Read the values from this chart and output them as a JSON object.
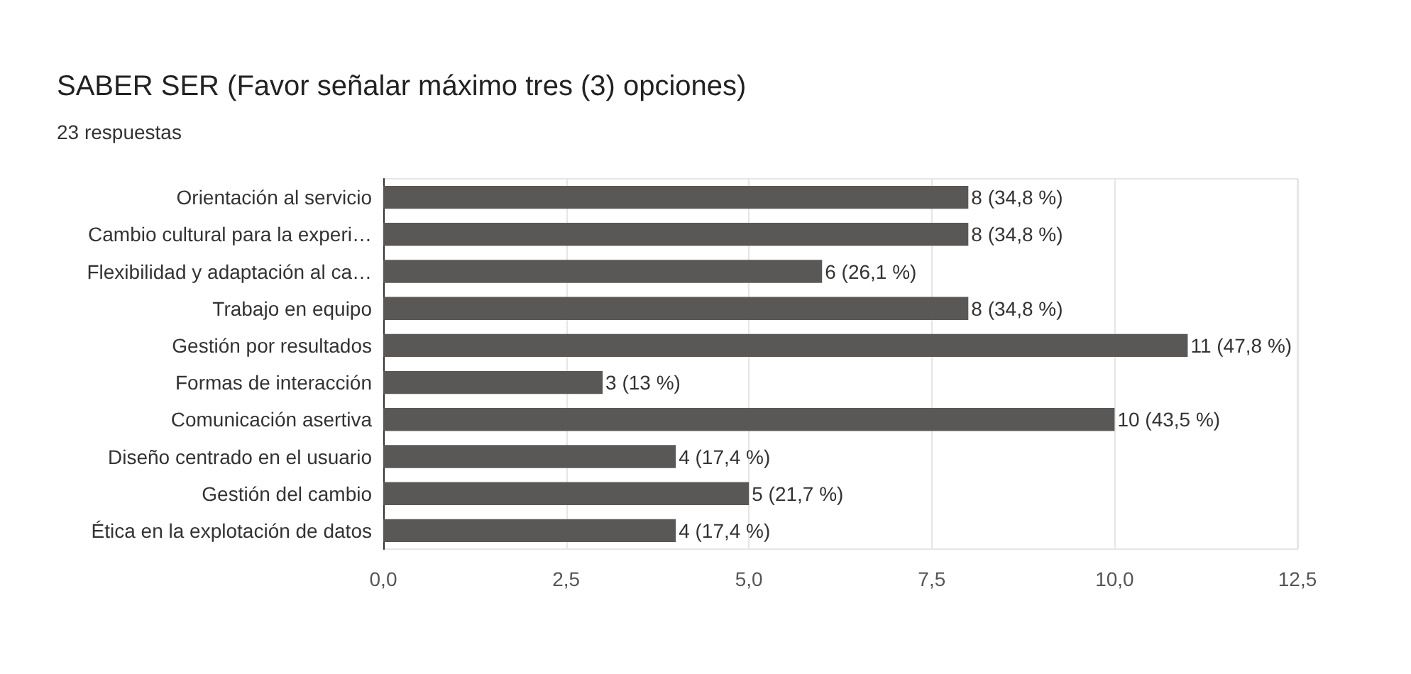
{
  "chart_data": {
    "type": "bar",
    "orientation": "horizontal",
    "title": "SABER SER (Favor señalar máximo tres (3) opciones)",
    "subtitle": "23 respuestas",
    "categories": [
      "Orientación al servicio",
      "Cambio cultural para la experi…",
      "Flexibilidad y adaptación al ca…",
      "Trabajo en equipo",
      "Gestión por resultados",
      "Formas de interacción",
      "Comunicación asertiva",
      "Diseño centrado en el usuario",
      "Gestión del cambio",
      "Ética en la explotación de datos"
    ],
    "values": [
      8,
      8,
      6,
      8,
      11,
      3,
      10,
      4,
      5,
      4
    ],
    "value_labels": [
      "8 (34,8 %)",
      "8 (34,8 %)",
      "6 (26,1 %)",
      "8 (34,8 %)",
      "11 (47,8 %)",
      "3 (13 %)",
      "10 (43,5 %)",
      "4 (17,4 %)",
      "5 (21,7 %)",
      "4 (17,4 %)"
    ],
    "color": "#595856",
    "xlim": [
      0,
      12.5
    ],
    "xticks": [
      {
        "value": 0,
        "label": "0,0"
      },
      {
        "value": 2.5,
        "label": "2,5"
      },
      {
        "value": 5,
        "label": "5,0"
      },
      {
        "value": 7.5,
        "label": "7,5"
      },
      {
        "value": 10,
        "label": "10,0"
      },
      {
        "value": 12.5,
        "label": "12,5"
      }
    ],
    "grid": "x"
  }
}
